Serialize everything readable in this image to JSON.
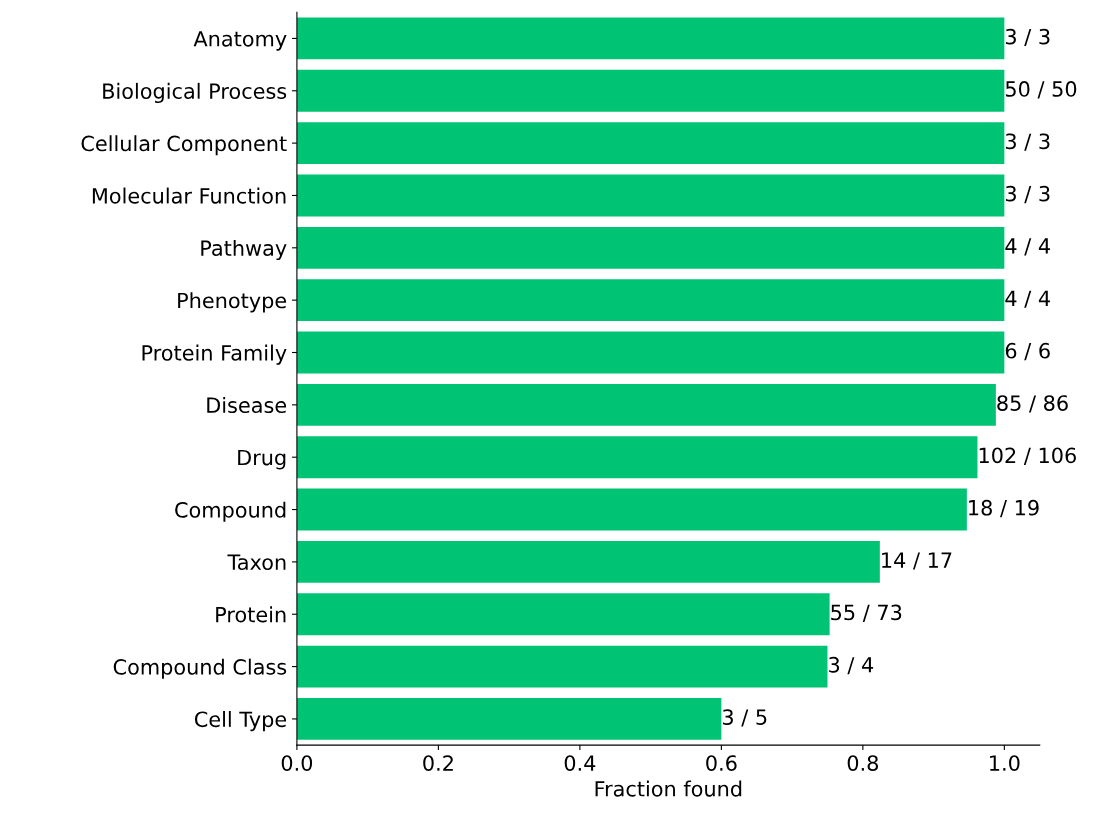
{
  "chart_data": {
    "type": "bar",
    "orientation": "horizontal",
    "xlabel": "Fraction found",
    "categories": [
      "Anatomy",
      "Biological Process",
      "Cellular Component",
      "Molecular Function",
      "Pathway",
      "Phenotype",
      "Protein Family",
      "Disease",
      "Drug",
      "Compound",
      "Taxon",
      "Protein",
      "Compound Class",
      "Cell Type"
    ],
    "values": [
      1.0,
      1.0,
      1.0,
      1.0,
      1.0,
      1.0,
      1.0,
      0.988,
      0.962,
      0.947,
      0.824,
      0.753,
      0.75,
      0.6
    ],
    "annotations": [
      {
        "text": "3 / 3",
        "x": 1.0,
        "y": "Anatomy"
      },
      {
        "text": "50 / 50",
        "x": 1.0,
        "y": "Biological Process"
      },
      {
        "text": "3 / 3",
        "x": 1.0,
        "y": "Cellular Component"
      },
      {
        "text": "3 / 3",
        "x": 1.0,
        "y": "Molecular Function"
      },
      {
        "text": "4 / 4",
        "x": 1.0,
        "y": "Pathway"
      },
      {
        "text": "4 / 4",
        "x": 1.0,
        "y": "Phenotype"
      },
      {
        "text": "6 / 6",
        "x": 1.0,
        "y": "Protein Family"
      },
      {
        "text": "85 / 86",
        "x": 0.988,
        "y": "Disease"
      },
      {
        "text": "102 / 106",
        "x": 0.962,
        "y": "Drug"
      },
      {
        "text": "18 / 19",
        "x": 0.947,
        "y": "Compound"
      },
      {
        "text": "14 / 17",
        "x": 0.824,
        "y": "Taxon"
      },
      {
        "text": "55 / 73",
        "x": 0.753,
        "y": "Protein"
      },
      {
        "text": "3 / 4",
        "x": 0.75,
        "y": "Compound Class"
      },
      {
        "text": "3 / 5",
        "x": 0.6,
        "y": "Cell Type"
      }
    ],
    "color": "#00c373",
    "xlim": [
      0,
      1.05
    ],
    "xticks": [
      {
        "value": 0,
        "label": "0.0"
      },
      {
        "value": 0.2,
        "label": "0.2"
      },
      {
        "value": 0.4,
        "label": "0.4"
      },
      {
        "value": 0.6,
        "label": "0.6"
      },
      {
        "value": 0.8,
        "label": "0.8"
      },
      {
        "value": 1.0,
        "label": "1.0"
      }
    ],
    "grid": false,
    "legend": false
  }
}
